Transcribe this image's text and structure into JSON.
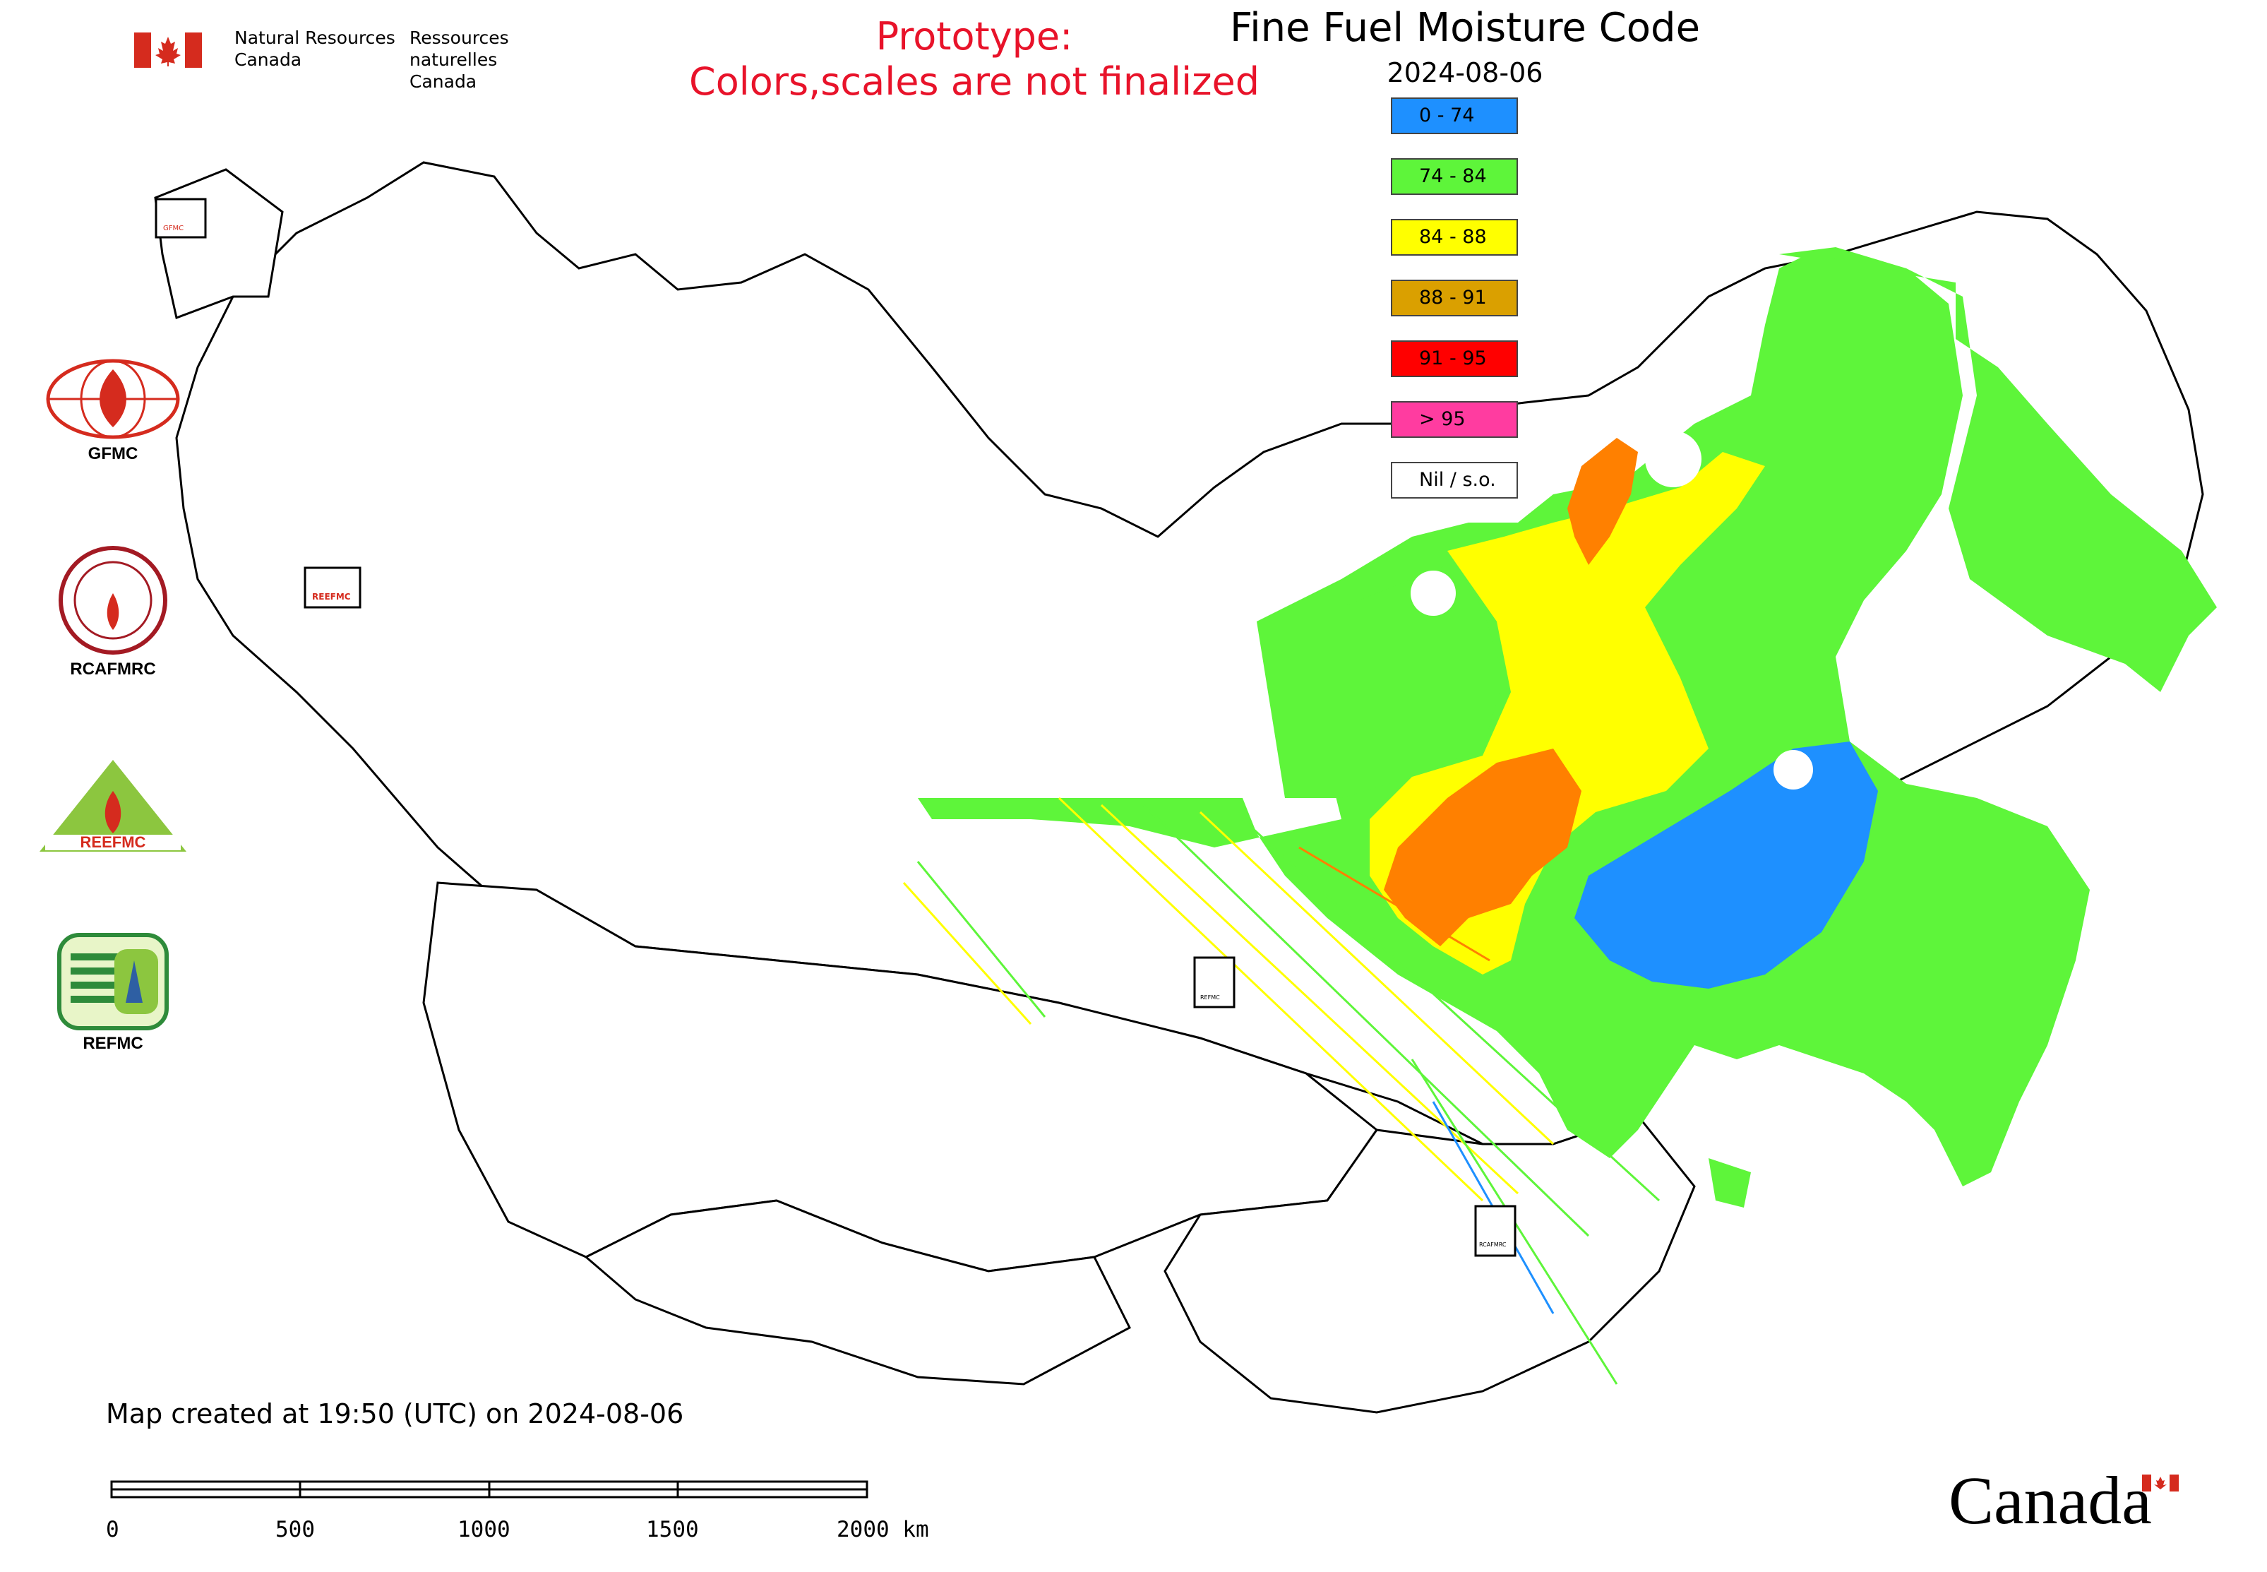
{
  "header": {
    "agency_en": "Natural Resources\nCanada",
    "agency_fr": "Ressources naturelles\nCanada",
    "prototype_line1": "Prototype:",
    "prototype_line2": "Colors,scales are not finalized",
    "title": "Fine Fuel Moisture Code",
    "date": "2024-08-06"
  },
  "legend": [
    {
      "label": "0 - 74",
      "color": "#1e90ff"
    },
    {
      "label": "74 - 84",
      "color": "#5ef53a"
    },
    {
      "label": "84 - 88",
      "color": "#ffff00"
    },
    {
      "label": "88 - 91",
      "color": "#daa000"
    },
    {
      "label": "91 - 95",
      "color": "#ff0000"
    },
    {
      "label": "> 95",
      "color": "#ff3ca0"
    },
    {
      "label": "Nil / s.o.",
      "color": "#ffffff"
    }
  ],
  "logos": [
    {
      "caption": "GFMC",
      "icon": "gfmc-logo"
    },
    {
      "caption": "RCAFMRC",
      "icon": "rcafmrc-logo"
    },
    {
      "caption": "",
      "icon": "reefmc-logo",
      "printed_text": "REEFMC"
    },
    {
      "caption": "REFMC",
      "icon": "refmc-logo"
    }
  ],
  "map_markers": [
    {
      "label": "GFMC"
    },
    {
      "label": "REEFMC"
    },
    {
      "label": "REFMC"
    },
    {
      "label": "RCAFMRC"
    }
  ],
  "footer": {
    "created": "Map created at 19:50 (UTC) on 2024-08-06",
    "scale_ticks": [
      "0",
      "500",
      "1000",
      "1500",
      "2000 km"
    ],
    "wordmark": "Canada"
  },
  "colors": {
    "prototype_text": "#e8132a",
    "canada_red": "#d52b1e",
    "orange_region": "#ff8000"
  }
}
